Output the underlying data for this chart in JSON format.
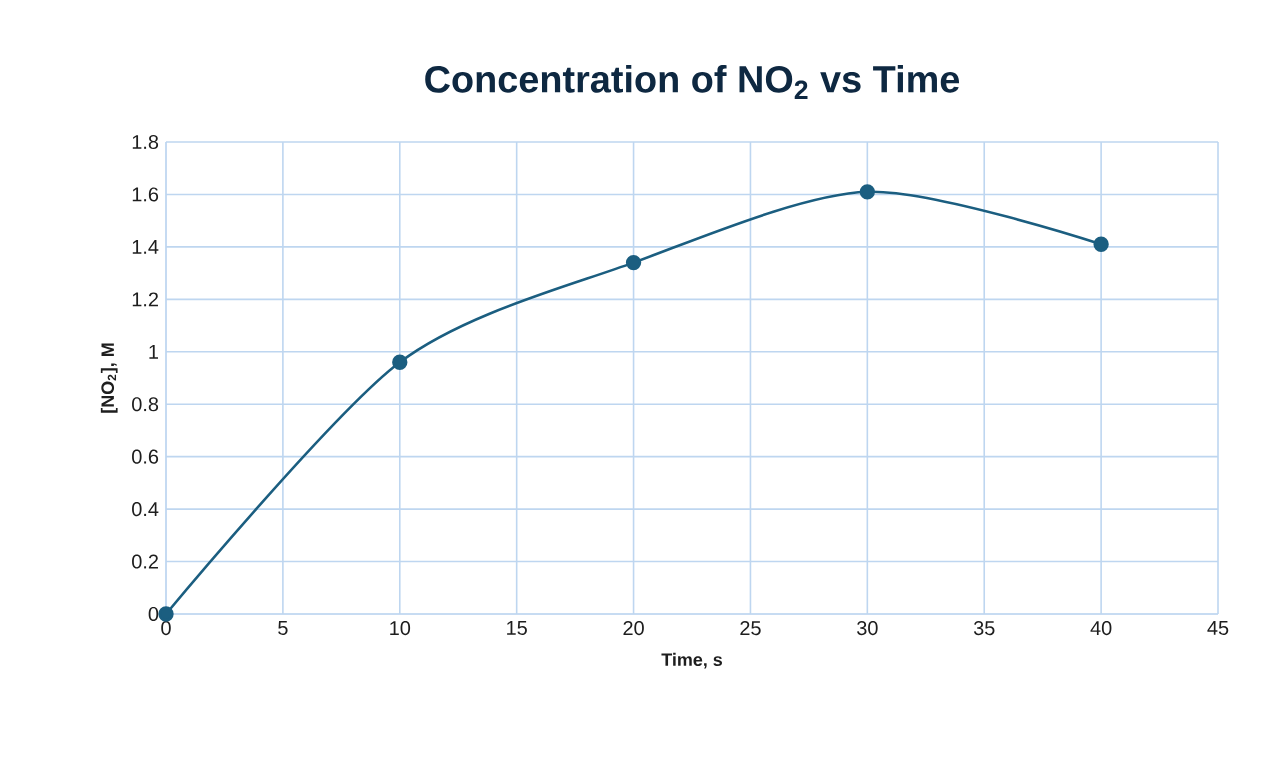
{
  "chart_data": {
    "type": "line",
    "title": "Concentration of NO$_{2}$ vs Time",
    "xlabel": "Time, s",
    "ylabel": "[NO$_{2}$], M",
    "x": [
      0,
      10,
      20,
      30,
      40
    ],
    "series": [
      {
        "color": "#1b5e80",
        "values": [
          0,
          0.96,
          1.34,
          1.61,
          1.41
        ]
      }
    ],
    "xlim": [
      0,
      45
    ],
    "xticks": [
      0,
      5,
      10,
      15,
      20,
      25,
      30,
      35,
      40,
      45
    ],
    "ylim": [
      0,
      1.8
    ],
    "yticks": [
      0,
      0.2,
      0.4,
      0.6,
      0.8,
      1,
      1.2,
      1.4,
      1.6,
      1.8
    ],
    "grid": true,
    "marker": "circle",
    "line_style": "solid"
  }
}
